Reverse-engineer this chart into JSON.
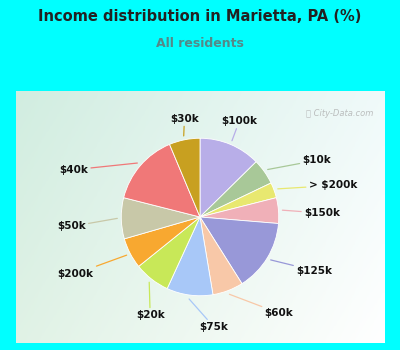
{
  "title": "Income distribution in Marietta, PA (%)",
  "subtitle": "All residents",
  "title_color": "#222222",
  "subtitle_color": "#558888",
  "bg_outer": "#00FFFF",
  "bg_inner_tl": "#c8e8d8",
  "bg_inner_br": "#e8f8f0",
  "watermark": "ⓘ City-Data.com",
  "labels": [
    "$100k",
    "$10k",
    "> $200k",
    "$150k",
    "$125k",
    "$60k",
    "$75k",
    "$20k",
    "$200k",
    "$50k",
    "$40k",
    "$30k"
  ],
  "values": [
    12,
    5,
    3,
    5,
    14,
    6,
    9,
    7,
    6,
    8,
    14,
    6
  ],
  "colors": [
    "#b8aee8",
    "#a8c898",
    "#e8e870",
    "#f0b0b8",
    "#9898d8",
    "#f8c8a8",
    "#a8c8f8",
    "#c8e858",
    "#f8a830",
    "#c8c8a8",
    "#f07878",
    "#c8a020"
  ],
  "label_offsets": {
    "$100k": [
      0.5,
      1.22,
      "center"
    ],
    "$10k": [
      1.3,
      0.72,
      "left"
    ],
    "> $200k": [
      1.38,
      0.4,
      "left"
    ],
    "$150k": [
      1.32,
      0.05,
      "left"
    ],
    "$125k": [
      1.22,
      -0.68,
      "left"
    ],
    "$60k": [
      0.82,
      -1.22,
      "left"
    ],
    "$75k": [
      0.18,
      -1.4,
      "center"
    ],
    "$20k": [
      -0.45,
      -1.25,
      "right"
    ],
    "$200k": [
      -1.35,
      -0.72,
      "right"
    ],
    "$50k": [
      -1.45,
      -0.12,
      "right"
    ],
    "$40k": [
      -1.42,
      0.6,
      "right"
    ],
    "$30k": [
      -0.38,
      1.25,
      "left"
    ]
  },
  "figsize": [
    4.0,
    3.5
  ],
  "dpi": 100
}
